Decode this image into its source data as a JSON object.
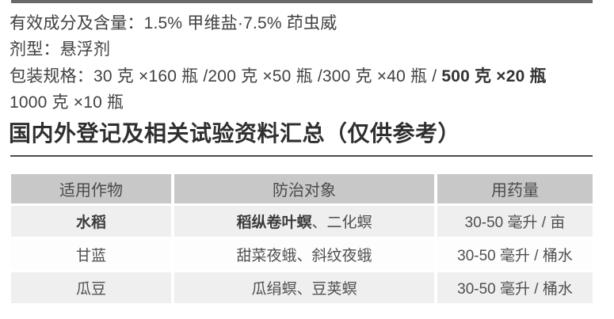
{
  "product_info": {
    "active_ingredient": "有效成分及含量：1.5% 甲维盐·7.5% 茚虫威",
    "formulation": "剂型：悬浮剂",
    "packaging_regular": "包装规格：30 克 ×160 瓶 /200 克 ×50 瓶 /300 克 ×40 瓶 / ",
    "packaging_bold": "500 克 ×20 瓶",
    "packaging_continued": "1000 克 ×10 瓶"
  },
  "section": {
    "heading": "国内外登记及相关试验资料汇总（仅供参考）"
  },
  "table": {
    "headers": [
      "适用作物",
      "防治对象",
      "用药量"
    ],
    "rows": [
      {
        "crop": "水稻",
        "target_bold": "稻纵卷叶螟",
        "target_regular": "、二化螟",
        "dosage": "30-50 毫升 / 亩"
      },
      {
        "crop": "甘蓝",
        "target_bold": "",
        "target_regular": "甜菜夜蛾、斜纹夜蛾",
        "dosage": "30-50 毫升 / 桶水"
      },
      {
        "crop": "瓜豆",
        "target_bold": "",
        "target_regular": "瓜绢螟、豆荚螟",
        "dosage": "30-50 毫升 / 桶水"
      }
    ]
  },
  "colors": {
    "top_rule": "#696969",
    "section_divider": "#4b4b4b",
    "table_header_bg": "#c8c8c8",
    "table_row_shade_bg": "#efefef",
    "table_row_plain_bg": "#fdfdfd",
    "body_text": "#414141",
    "bold_text": "#333333",
    "heading_text": "#2f2f2f"
  }
}
